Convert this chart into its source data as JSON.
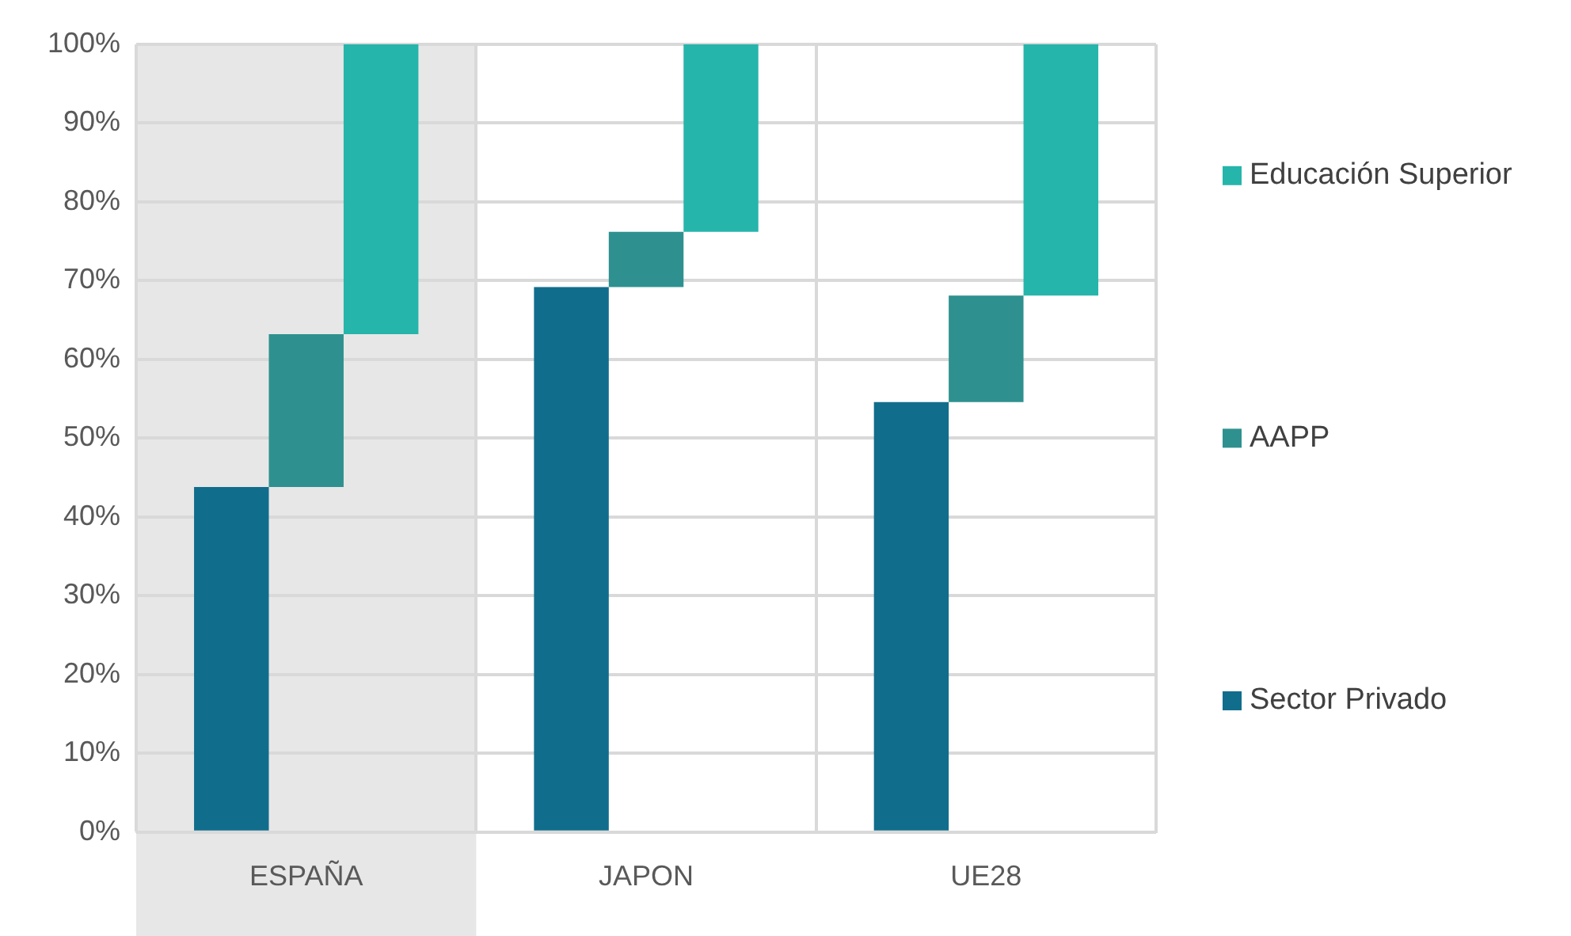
{
  "chart_data": {
    "type": "bar",
    "categories": [
      "ESPAÑA",
      "JAPON",
      "UE28"
    ],
    "series": [
      {
        "name": "Sector Privado",
        "color": "#116d8c",
        "values": [
          43.8,
          69.2,
          54.6
        ],
        "base": [
          0,
          0,
          0
        ]
      },
      {
        "name": "AAPP",
        "color": "#2e918f",
        "values": [
          19.4,
          7.0,
          13.5
        ],
        "base": [
          43.8,
          69.2,
          54.6
        ]
      },
      {
        "name": "Educación Superior",
        "color": "#26b5ab",
        "values": [
          36.8,
          23.8,
          31.9
        ],
        "base": [
          63.2,
          76.2,
          68.1
        ]
      }
    ],
    "ylim": [
      0,
      100
    ],
    "yticks": [
      {
        "value": 0,
        "label": "0%"
      },
      {
        "value": 10,
        "label": "10%"
      },
      {
        "value": 20,
        "label": "20%"
      },
      {
        "value": 30,
        "label": "30%"
      },
      {
        "value": 40,
        "label": "40%"
      },
      {
        "value": 50,
        "label": "50%"
      },
      {
        "value": 60,
        "label": "60%"
      },
      {
        "value": 70,
        "label": "70%"
      },
      {
        "value": 80,
        "label": "80%"
      },
      {
        "value": 90,
        "label": "90%"
      },
      {
        "value": 100,
        "label": "100%"
      }
    ],
    "bands": [
      {
        "axis": "x",
        "from": "ESPAÑA",
        "to": "ESPAÑA",
        "color": "#e7e7e7"
      }
    ],
    "grid": true,
    "legend": "right"
  }
}
